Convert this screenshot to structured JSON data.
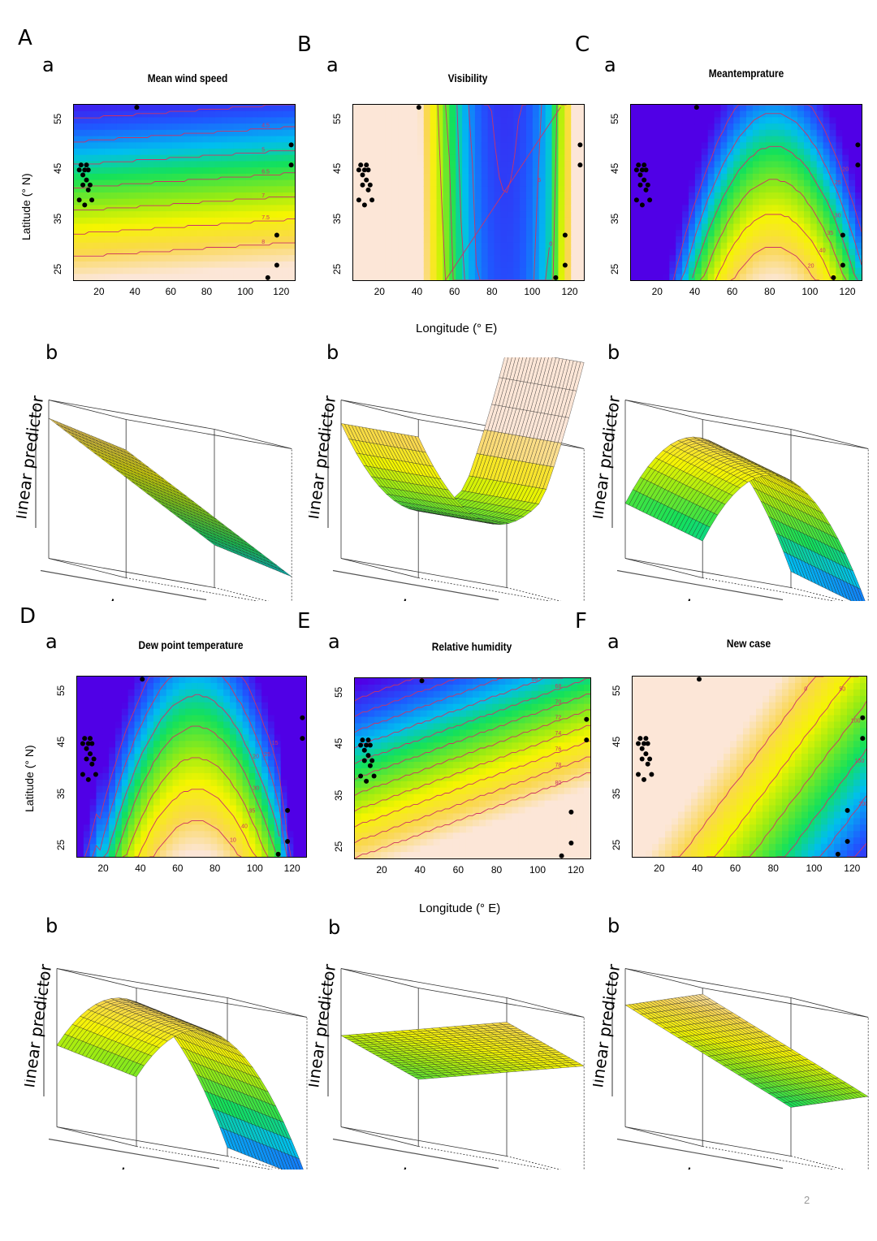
{
  "page_number": "2",
  "panel_letters": [
    "A",
    "B",
    "C",
    "D",
    "E",
    "F"
  ],
  "sub_a": "a",
  "sub_b": "b",
  "axis_labels": {
    "latitude": "Latitude (°  N)",
    "longitude": "Longitude (°   E)",
    "surface_z": "linear predictor",
    "surface_x": "Lon",
    "surface_y": "Lat"
  },
  "colors": {
    "contour": "#cc3366",
    "points": "#000000"
  },
  "chart_data": [
    {
      "type": "heatmap",
      "panel": "A",
      "title": "Mean wind speed",
      "x_ticks": [
        "20",
        "40",
        "60",
        "80",
        "100",
        "120"
      ],
      "y_ticks": [
        "25",
        "35",
        "45",
        "55"
      ],
      "xlim": [
        5,
        128
      ],
      "ylim": [
        23,
        58
      ],
      "contour_labels": [
        "4",
        "4.5",
        "5",
        "6.5",
        "7",
        "7.5",
        "8"
      ]
    },
    {
      "type": "heatmap",
      "panel": "B",
      "title": "Visibility",
      "x_ticks": [
        "20",
        "40",
        "60",
        "80",
        "100",
        "120"
      ],
      "y_ticks": [
        "25",
        "35",
        "45",
        "55"
      ],
      "xlim": [
        5,
        128
      ],
      "ylim": [
        23,
        58
      ],
      "contour_labels": [
        "4",
        "6",
        "0",
        "-2",
        "11",
        "12",
        "14"
      ]
    },
    {
      "type": "heatmap",
      "panel": "C",
      "title": "Meantemprature",
      "x_ticks": [
        "20",
        "40",
        "60",
        "80",
        "100",
        "120"
      ],
      "y_ticks": [
        "25",
        "35",
        "45",
        "55"
      ],
      "xlim": [
        5,
        128
      ],
      "ylim": [
        23,
        58
      ],
      "contour_labels": [
        "20",
        "25",
        "30",
        "35",
        "40",
        "20"
      ]
    },
    {
      "type": "heatmap",
      "panel": "D",
      "title": "Dew point temperature",
      "x_ticks": [
        "20",
        "40",
        "60",
        "80",
        "100",
        "120"
      ],
      "y_ticks": [
        "25",
        "35",
        "45",
        "55"
      ],
      "xlim": [
        5,
        128
      ],
      "ylim": [
        23,
        58
      ],
      "contour_labels": [
        "15",
        "25",
        "20",
        "30",
        "35",
        "40",
        "10"
      ]
    },
    {
      "type": "heatmap",
      "panel": "E",
      "title": "Relative humidity",
      "x_ticks": [
        "20",
        "40",
        "60",
        "80",
        "100",
        "120"
      ],
      "y_ticks": [
        "25",
        "35",
        "45",
        "55"
      ],
      "xlim": [
        5,
        128
      ],
      "ylim": [
        23,
        58
      ],
      "contour_labels": [
        "58",
        "60",
        "62",
        "66",
        "68",
        "70",
        "72",
        "74",
        "76",
        "78",
        "80"
      ]
    },
    {
      "type": "heatmap",
      "panel": "F",
      "title": "New case",
      "x_ticks": [
        "20",
        "40",
        "60",
        "80",
        "100",
        "120"
      ],
      "y_ticks": [
        "25",
        "35",
        "45",
        "55"
      ],
      "xlim": [
        5,
        128
      ],
      "ylim": [
        23,
        58
      ],
      "contour_labels": [
        "250",
        "200",
        "150",
        "100",
        "50",
        "0"
      ]
    }
  ],
  "observation_points": [
    [
      8,
      45
    ],
    [
      9,
      46
    ],
    [
      10,
      44
    ],
    [
      11,
      45
    ],
    [
      12,
      43
    ],
    [
      13,
      45
    ],
    [
      10,
      42
    ],
    [
      14,
      42
    ],
    [
      12,
      46
    ],
    [
      8,
      39
    ],
    [
      11,
      38
    ],
    [
      15,
      39
    ],
    [
      13,
      41
    ],
    [
      40,
      57.5
    ],
    [
      126,
      50
    ],
    [
      126,
      46
    ],
    [
      118,
      32
    ],
    [
      118,
      26
    ],
    [
      113,
      23.5
    ]
  ]
}
